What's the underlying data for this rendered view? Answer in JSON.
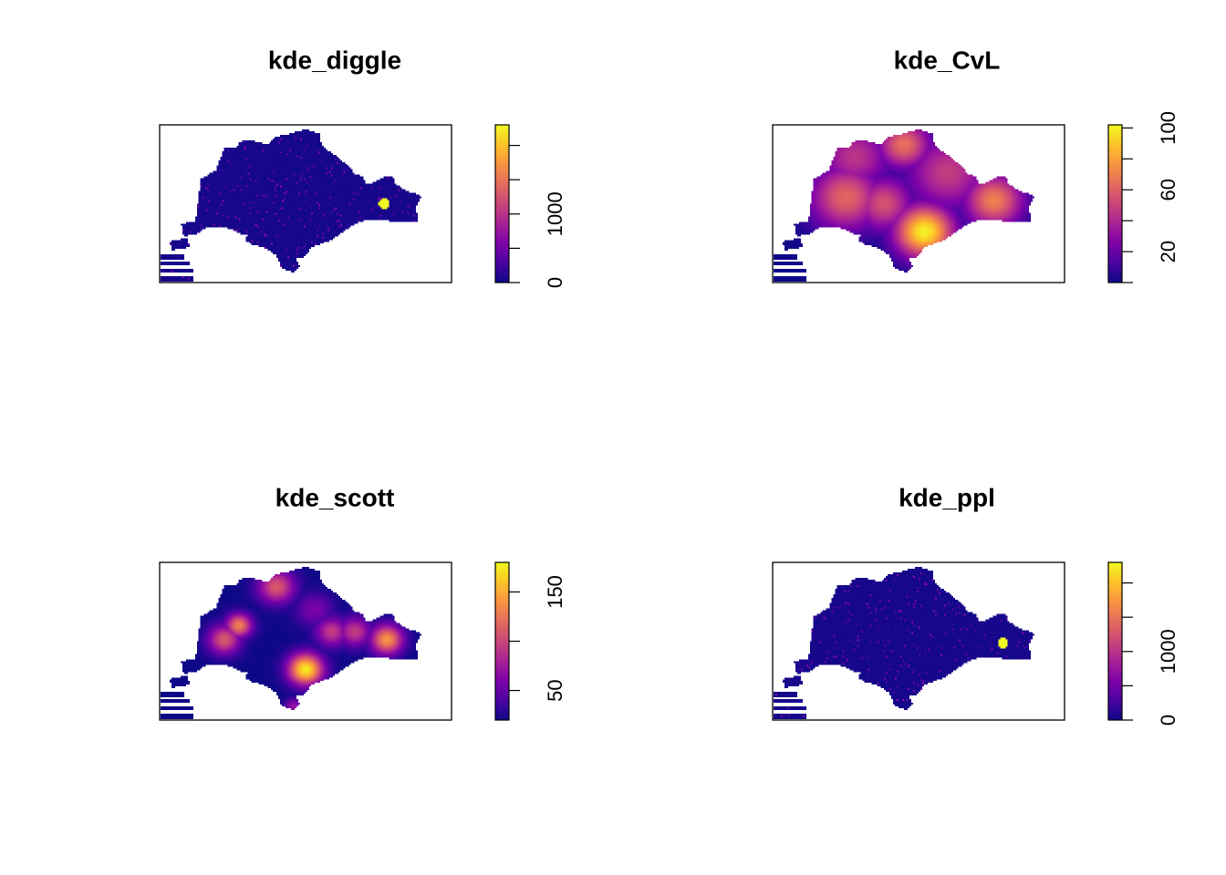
{
  "figure": {
    "layout": "2x2",
    "background": "#ffffff"
  },
  "palette": {
    "name": "plasma-like",
    "stops": [
      "#0d0887",
      "#4b03a1",
      "#7e03a8",
      "#a82296",
      "#cb4679",
      "#e56b5d",
      "#f89441",
      "#fdc328",
      "#f0f921"
    ]
  },
  "chart_data": [
    {
      "type": "heatmap",
      "title": "kde_diggle",
      "value_range": [
        0,
        2300
      ],
      "colorbar_ticks": [
        0,
        500,
        1000,
        1500,
        2000
      ],
      "colorbar_tick_labels": [
        "0",
        "",
        "1000",
        "",
        ""
      ],
      "surface": "spiky",
      "hotspots": [
        {
          "u": 0.77,
          "v": 0.5,
          "value": 2300,
          "spread": 0.004
        }
      ]
    },
    {
      "type": "heatmap",
      "title": "kde_CvL",
      "value_range": [
        0,
        102
      ],
      "colorbar_ticks": [
        0,
        20,
        40,
        60,
        80,
        100
      ],
      "colorbar_tick_labels": [
        "",
        "20",
        "",
        "60",
        "",
        "100"
      ],
      "surface": "smooth",
      "hotspots": [
        {
          "u": 0.52,
          "v": 0.68,
          "value": 100,
          "spread": 0.01
        },
        {
          "u": 0.76,
          "v": 0.48,
          "value": 70,
          "spread": 0.01
        },
        {
          "u": 0.25,
          "v": 0.46,
          "value": 62,
          "spread": 0.015
        },
        {
          "u": 0.38,
          "v": 0.5,
          "value": 55,
          "spread": 0.01
        },
        {
          "u": 0.45,
          "v": 0.12,
          "value": 65,
          "spread": 0.008
        },
        {
          "u": 0.6,
          "v": 0.3,
          "value": 48,
          "spread": 0.02
        },
        {
          "u": 0.28,
          "v": 0.2,
          "value": 45,
          "spread": 0.015
        }
      ]
    },
    {
      "type": "heatmap",
      "title": "kde_scott",
      "value_range": [
        20,
        180
      ],
      "colorbar_ticks": [
        50,
        100,
        150
      ],
      "colorbar_tick_labels": [
        "50",
        "",
        "150"
      ],
      "surface": "smooth",
      "hotspots": [
        {
          "u": 0.5,
          "v": 0.68,
          "value": 175,
          "spread": 0.0035
        },
        {
          "u": 0.78,
          "v": 0.49,
          "value": 140,
          "spread": 0.003
        },
        {
          "u": 0.27,
          "v": 0.4,
          "value": 130,
          "spread": 0.002
        },
        {
          "u": 0.22,
          "v": 0.49,
          "value": 110,
          "spread": 0.003
        },
        {
          "u": 0.4,
          "v": 0.15,
          "value": 110,
          "spread": 0.004
        },
        {
          "u": 0.59,
          "v": 0.44,
          "value": 95,
          "spread": 0.003
        },
        {
          "u": 0.67,
          "v": 0.44,
          "value": 95,
          "spread": 0.003
        },
        {
          "u": 0.53,
          "v": 0.3,
          "value": 60,
          "spread": 0.004
        },
        {
          "u": 0.46,
          "v": 0.92,
          "value": 70,
          "spread": 0.001
        }
      ]
    },
    {
      "type": "heatmap",
      "title": "kde_ppl",
      "value_range": [
        0,
        2300
      ],
      "colorbar_ticks": [
        0,
        500,
        1000,
        1500,
        2000
      ],
      "colorbar_tick_labels": [
        "0",
        "",
        "1000",
        "",
        ""
      ],
      "surface": "spiky",
      "hotspots": [
        {
          "u": 0.79,
          "v": 0.51,
          "value": 2300,
          "spread": 0.004
        }
      ]
    }
  ]
}
